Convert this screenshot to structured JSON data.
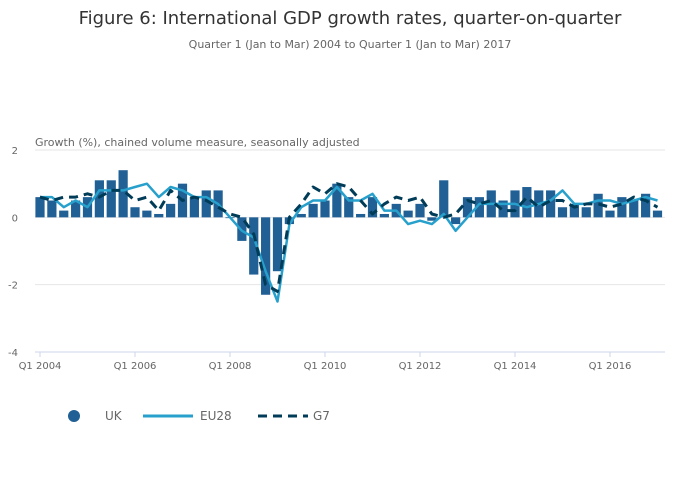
{
  "chart_data": {
    "type": "bar",
    "title": "Figure 6: International GDP growth rates, quarter-on-quarter",
    "subtitle": "Quarter 1 (Jan to Mar) 2004 to Quarter 1 (Jan to Mar) 2017",
    "ylabel": "Growth (%), chained volume measure, seasonally adjusted",
    "ylim": [
      -4,
      2
    ],
    "yticks": [
      2,
      0,
      -2,
      -4
    ],
    "x_start": "Q1 2004",
    "x_end": "Q1 2017",
    "xtick_labels": [
      "Q1 2004",
      "Q1 2006",
      "Q1 2008",
      "Q1 2010",
      "Q1 2012",
      "Q1 2014",
      "Q1 2016"
    ],
    "grid": true,
    "legend_position": "bottom-left",
    "series": [
      {
        "name": "UK",
        "kind": "bar",
        "color": "#206095",
        "values": [
          0.6,
          0.5,
          0.2,
          0.5,
          0.6,
          1.1,
          1.1,
          1.4,
          0.3,
          0.2,
          0.1,
          0.4,
          1.0,
          0.6,
          0.8,
          0.8,
          0.0,
          -0.7,
          -1.7,
          -2.3,
          -1.6,
          -0.2,
          0.1,
          0.4,
          0.5,
          1.0,
          0.6,
          0.1,
          0.6,
          0.1,
          0.4,
          0.2,
          0.4,
          -0.1,
          1.1,
          -0.2,
          0.6,
          0.6,
          0.8,
          0.5,
          0.8,
          0.9,
          0.8,
          0.8,
          0.3,
          0.4,
          0.3,
          0.7,
          0.2,
          0.6,
          0.5,
          0.7,
          0.2
        ]
      },
      {
        "name": "EU28",
        "kind": "line",
        "color": "#27a0cc",
        "values": [
          0.6,
          0.6,
          0.3,
          0.5,
          0.3,
          0.8,
          0.8,
          0.8,
          0.9,
          1.0,
          0.6,
          0.9,
          0.8,
          0.6,
          0.6,
          0.4,
          0.0,
          -0.4,
          -0.6,
          -1.6,
          -2.5,
          -0.2,
          0.3,
          0.5,
          0.5,
          0.9,
          0.5,
          0.5,
          0.7,
          0.2,
          0.2,
          -0.2,
          -0.1,
          -0.2,
          0.1,
          -0.4,
          0.0,
          0.4,
          0.4,
          0.4,
          0.4,
          0.3,
          0.4,
          0.5,
          0.8,
          0.4,
          0.4,
          0.5,
          0.5,
          0.4,
          0.5,
          0.6,
          0.5
        ]
      },
      {
        "name": "G7",
        "kind": "dashed-line",
        "color": "#003c57",
        "values": [
          0.6,
          0.5,
          0.6,
          0.6,
          0.7,
          0.6,
          0.8,
          0.8,
          0.5,
          0.6,
          0.2,
          0.8,
          0.5,
          0.6,
          0.5,
          0.3,
          0.1,
          0.0,
          -0.5,
          -2.0,
          -2.2,
          0.0,
          0.4,
          0.9,
          0.7,
          1.0,
          0.9,
          0.5,
          0.1,
          0.4,
          0.6,
          0.5,
          0.6,
          0.1,
          0.0,
          0.1,
          0.5,
          0.4,
          0.5,
          0.2,
          0.2,
          0.6,
          0.3,
          0.5,
          0.5,
          0.3,
          0.4,
          0.4,
          0.3,
          0.4,
          0.6,
          0.5,
          0.3
        ]
      }
    ]
  }
}
